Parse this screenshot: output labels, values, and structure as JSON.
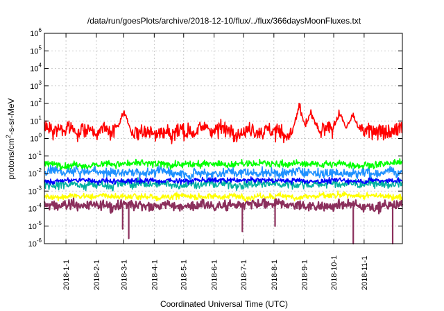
{
  "chart_data": {
    "type": "line",
    "title": "/data/run/goesPlots/archive/2018-12-10/flux/../flux/366daysMoonFluxes.txt",
    "xlabel": "Coordinated Universal Time (UTC)",
    "ylabel": {
      "pre": "protons/cm",
      "sup": "2",
      "post": "-s-sr-MeV"
    },
    "yscale": "log",
    "ylim": [
      1e-06,
      1000000.0
    ],
    "xlim": [
      "2017-12-10",
      "2018-12-10"
    ],
    "grid": true,
    "y_ticks": [
      {
        "base": "10",
        "exp": "-6",
        "value": 1e-06
      },
      {
        "base": "10",
        "exp": "-5",
        "value": 1e-05
      },
      {
        "base": "10",
        "exp": "-4",
        "value": 0.0001
      },
      {
        "base": "10",
        "exp": "-3",
        "value": 0.001
      },
      {
        "base": "10",
        "exp": "-2",
        "value": 0.01
      },
      {
        "base": "10",
        "exp": "-1",
        "value": 0.1
      },
      {
        "base": "10",
        "exp": "0",
        "value": 1
      },
      {
        "base": "10",
        "exp": "1",
        "value": 10
      },
      {
        "base": "10",
        "exp": "2",
        "value": 100
      },
      {
        "base": "10",
        "exp": "3",
        "value": 1000
      },
      {
        "base": "10",
        "exp": "4",
        "value": 10000
      },
      {
        "base": "10",
        "exp": "5",
        "value": 100000
      },
      {
        "base": "10",
        "exp": "6",
        "value": 1000000
      }
    ],
    "x_ticks": [
      "2018-1-1",
      "2018-2-1",
      "2018-3-1",
      "2018-4-1",
      "2018-5-1",
      "2018-6-1",
      "2018-7-1",
      "2018-8-1",
      "2018-9-1",
      "2018-10-1",
      "2018-11-1"
    ],
    "series": [
      {
        "color": "#8b2f5c",
        "level": 0.00015,
        "spread": 0.22,
        "dips": [
          [
            "2018-2-28",
            7e-06
          ],
          [
            "2018-3-6",
            2e-06
          ],
          [
            "2018-6-30",
            5e-06
          ],
          [
            "2018-8-2",
            1e-05
          ],
          [
            "2018-10-21",
            1e-06
          ],
          [
            "2018-11-30",
            1e-06
          ]
        ]
      },
      {
        "color": "#ffff00",
        "level": 0.0005,
        "spread": 0.14
      },
      {
        "color": "#00b0a0",
        "level": 0.0025,
        "spread": 0.2
      },
      {
        "color": "#1e90ff",
        "level": 0.012,
        "spread": 0.22
      },
      {
        "color": "#00ff00",
        "level": 0.035,
        "spread": 0.16
      },
      {
        "color": "#0000ff",
        "level": 0.004,
        "spread": 0.12
      },
      {
        "color": "#ff0000",
        "level": 3,
        "spread": 0.38,
        "peaks": [
          [
            "2018-3-1",
            60
          ],
          [
            "2018-8-27",
            150
          ],
          [
            "2018-9-8",
            50
          ],
          [
            "2018-10-7",
            70
          ],
          [
            "2018-10-20",
            40
          ]
        ]
      }
    ]
  }
}
